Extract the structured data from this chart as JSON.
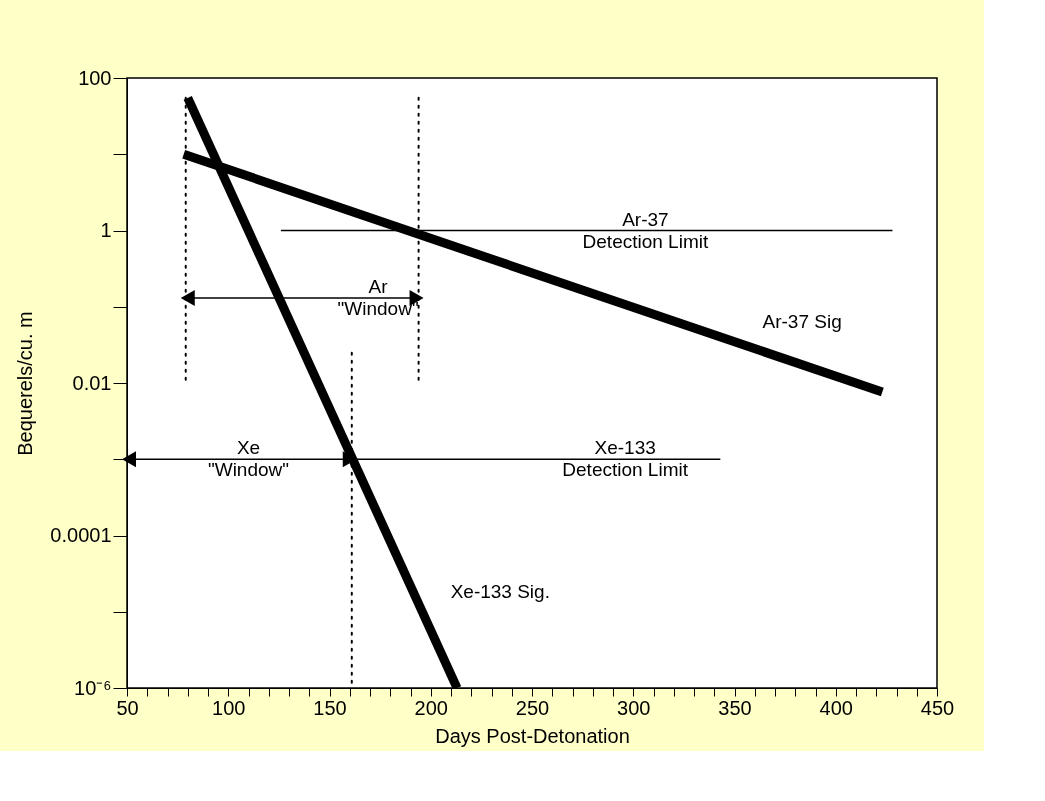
{
  "chart_data": {
    "type": "line",
    "xlabel": "Days Post-Detonation",
    "ylabel": "Bequerels/cu. m",
    "log": "y",
    "xlim": [
      50,
      450
    ],
    "ylim": [
      1e-06,
      100
    ],
    "xticks": [
      50,
      {
        "value": 60,
        "label": null
      },
      {
        "value": 70,
        "label": null
      },
      {
        "value": 80,
        "label": null
      },
      {
        "value": 90,
        "label": null
      },
      100,
      {
        "value": 110,
        "label": null
      },
      {
        "value": 120,
        "label": null
      },
      {
        "value": 130,
        "label": null
      },
      {
        "value": 140,
        "label": null
      },
      150,
      {
        "value": 160,
        "label": null
      },
      {
        "value": 170,
        "label": null
      },
      {
        "value": 180,
        "label": null
      },
      {
        "value": 190,
        "label": null
      },
      200,
      {
        "value": 210,
        "label": null
      },
      {
        "value": 220,
        "label": null
      },
      {
        "value": 230,
        "label": null
      },
      {
        "value": 240,
        "label": null
      },
      250,
      {
        "value": 260,
        "label": null
      },
      {
        "value": 270,
        "label": null
      },
      {
        "value": 280,
        "label": null
      },
      {
        "value": 290,
        "label": null
      },
      300,
      {
        "value": 310,
        "label": null
      },
      {
        "value": 320,
        "label": null
      },
      {
        "value": 330,
        "label": null
      },
      {
        "value": 340,
        "label": null
      },
      350,
      {
        "value": 360,
        "label": null
      },
      {
        "value": 370,
        "label": null
      },
      {
        "value": 380,
        "label": null
      },
      {
        "value": 390,
        "label": null
      },
      400,
      {
        "value": 410,
        "label": null
      },
      {
        "value": 420,
        "label": null
      },
      {
        "value": 430,
        "label": null
      },
      {
        "value": 440,
        "label": null
      },
      450
    ],
    "yticks": [
      100,
      {
        "value": 10,
        "label": null
      },
      1,
      {
        "value": 0.1,
        "label": null
      },
      0.01,
      {
        "value": 0.001,
        "label": null
      },
      0.0001,
      {
        "value": 1e-05,
        "label": null
      },
      {
        "value": 1e-06,
        "label": "10⁻⁶"
      }
    ],
    "grid": false,
    "series": [
      {
        "color": "#000000",
        "x": [
          78,
          423
        ],
        "values": [
          10,
          0.0076
        ]
      },
      {
        "color": "#000000",
        "x": [
          80,
          213
        ],
        "values": [
          55,
          1e-06
        ]
      },
      {
        "color": "#000000",
        "x": [
          126,
          428
        ],
        "values": [
          1,
          1
        ]
      },
      {
        "color": "#000000",
        "x": [
          160,
          343
        ],
        "values": [
          0.001,
          0.001
        ]
      },
      {
        "color": "#000000",
        "line_style": "dotted",
        "x": [
          79,
          79
        ],
        "values": [
          55,
          0.01
        ]
      },
      {
        "color": "#000000",
        "line_style": "dotted",
        "x": [
          194,
          194
        ],
        "values": [
          55,
          0.01
        ]
      },
      {
        "color": "#000000",
        "line_style": "dotted",
        "x": [
          161,
          161
        ],
        "values": [
          0.025,
          1e-06
        ]
      },
      {
        "color": "#000000",
        "marker": "triangle",
        "x": [
          80,
          193
        ],
        "values": [
          0.13,
          0.13
        ]
      },
      {
        "color": "#000000",
        "marker": "triangle",
        "x": [
          51,
          160
        ],
        "values": [
          0.001,
          0.001
        ]
      }
    ],
    "annotations": [
      {
        "text": "Ar-37\nDetection Limit",
        "x": 306,
        "y": 1
      },
      {
        "text": "Ar-37 Sig",
        "x": 350,
        "y": 0.035
      },
      {
        "text": "Ar\n\"Window\"",
        "x": 174,
        "y": 0.13
      },
      {
        "text": "Xe-133\nDetection Limit",
        "x": 296,
        "y": 0.001
      },
      {
        "text": "Xe\n\"Window\"",
        "x": 110,
        "y": 0.001
      },
      {
        "text": "Xe-133 Sig.",
        "x": 196,
        "y": 1e-05
      }
    ]
  }
}
